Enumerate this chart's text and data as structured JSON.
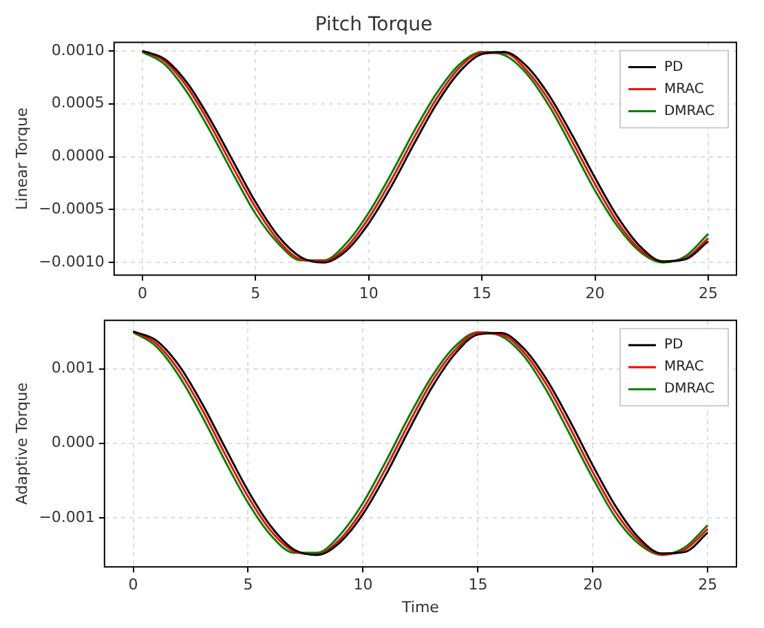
{
  "chart_data": [
    {
      "type": "line",
      "title": "Pitch Torque",
      "ylabel": "Linear Torque",
      "x": [
        0,
        1,
        2,
        3,
        4,
        5,
        6,
        7,
        8,
        9,
        10,
        11,
        12,
        13,
        14,
        15,
        16,
        17,
        18,
        19,
        20,
        21,
        22,
        23,
        24,
        25
      ],
      "xlim": [
        -1.25,
        26.25
      ],
      "xticks": [
        0,
        5,
        10,
        15,
        20,
        25
      ],
      "ylim": [
        -0.00112,
        0.00108
      ],
      "yticks": [
        {
          "value": -0.001,
          "label": "−0.0010"
        },
        {
          "value": -0.0005,
          "label": "−0.0005"
        },
        {
          "value": 0,
          "label": "0.0000"
        },
        {
          "value": 0.0005,
          "label": "0.0005"
        },
        {
          "value": 0.001,
          "label": "0.0010"
        }
      ],
      "grid": true,
      "legend": "top right",
      "series": [
        {
          "name": "PD",
          "color": "#000000",
          "values": [
            0.001,
            0.00092,
            0.00069,
            0.00035,
            -4e-05,
            -0.00043,
            -0.00075,
            -0.00095,
            -0.001,
            -0.00089,
            -0.00063,
            -0.00028,
            0.00012,
            0.0005,
            0.0008,
            0.00097,
            0.00099,
            0.00085,
            0.00057,
            0.0002,
            -0.0002,
            -0.00057,
            -0.00085,
            -0.00099,
            -0.00097,
            -0.0008
          ]
        },
        {
          "name": "MRAC",
          "color": "#ff0000",
          "values": [
            0.001,
            0.0009,
            0.00065,
            0.0003,
            -0.0001,
            -0.00048,
            -0.00079,
            -0.00097,
            -0.00099,
            -0.00086,
            -0.00058,
            -0.00022,
            0.00018,
            0.00055,
            0.00084,
            0.00098,
            0.00098,
            0.00081,
            0.00052,
            0.00014,
            -0.00026,
            -0.00062,
            -0.00088,
            -0.00099,
            -0.00096,
            -0.00077
          ]
        },
        {
          "name": "DMRAC",
          "color": "#008000",
          "values": [
            0.00099,
            0.00087,
            0.0006,
            0.00024,
            -0.00016,
            -0.00054,
            -0.00082,
            -0.00098,
            -0.00098,
            -0.00082,
            -0.00053,
            -0.00016,
            0.00024,
            0.0006,
            0.00087,
            0.00099,
            0.00096,
            0.00078,
            0.00047,
            8e-05,
            -0.00032,
            -0.00066,
            -0.0009,
            -0.001,
            -0.00094,
            -0.00073
          ]
        }
      ]
    },
    {
      "type": "line",
      "xlabel": "Time",
      "ylabel": "Adaptive Torque",
      "x": [
        0,
        1,
        2,
        3,
        4,
        5,
        6,
        7,
        8,
        9,
        10,
        11,
        12,
        13,
        14,
        15,
        16,
        17,
        18,
        19,
        20,
        21,
        22,
        23,
        24,
        25
      ],
      "xlim": [
        -1.25,
        26.25
      ],
      "xticks": [
        0,
        5,
        10,
        15,
        20,
        25
      ],
      "ylim": [
        -0.00166,
        0.00165
      ],
      "yticks": [
        {
          "value": -0.001,
          "label": "−0.001"
        },
        {
          "value": 0,
          "label": "0.000"
        },
        {
          "value": 0.001,
          "label": "0.001"
        }
      ],
      "grid": true,
      "legend": "top right",
      "series": [
        {
          "name": "PD",
          "color": "#000000",
          "values": [
            0.0015,
            0.00138,
            0.00104,
            0.00053,
            -6e-05,
            -0.00064,
            -0.00112,
            -0.00143,
            -0.0015,
            -0.00133,
            -0.00095,
            -0.00042,
            0.00018,
            0.00075,
            0.0012,
            0.00146,
            0.00148,
            0.00127,
            0.00085,
            0.0003,
            -0.0003,
            -0.00085,
            -0.00127,
            -0.00148,
            -0.00146,
            -0.0012
          ]
        },
        {
          "name": "MRAC",
          "color": "#ff0000",
          "values": [
            0.0015,
            0.00134,
            0.00097,
            0.00045,
            -0.00015,
            -0.00072,
            -0.00118,
            -0.00145,
            -0.00149,
            -0.00129,
            -0.00088,
            -0.00033,
            0.00027,
            0.00083,
            0.00125,
            0.00148,
            0.00146,
            0.00122,
            0.00078,
            0.00021,
            -0.00039,
            -0.00093,
            -0.00131,
            -0.00149,
            -0.00143,
            -0.00115
          ]
        },
        {
          "name": "DMRAC",
          "color": "#008000",
          "values": [
            0.00149,
            0.0013,
            0.0009,
            0.00036,
            -0.00024,
            -0.0008,
            -0.00124,
            -0.00147,
            -0.00147,
            -0.00123,
            -0.0008,
            -0.00024,
            0.00036,
            0.0009,
            0.0013,
            0.00149,
            0.00144,
            0.00117,
            0.0007,
            0.00012,
            -0.00047,
            -0.001,
            -0.00135,
            -0.0015,
            -0.0014,
            -0.0011
          ]
        }
      ]
    }
  ]
}
